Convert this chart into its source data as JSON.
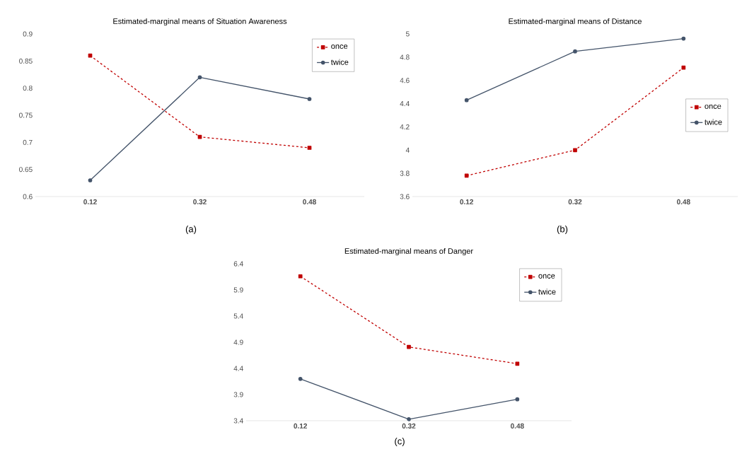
{
  "chart_data": [
    {
      "type": "line",
      "title": "Estimated-marginal means of Situation Awareness",
      "categories": [
        "0.12",
        "0.32",
        "0.48"
      ],
      "ylim": [
        0.6,
        0.9
      ],
      "yticks": [
        0.6,
        0.65,
        0.7,
        0.75,
        0.8,
        0.85,
        0.9
      ],
      "legend": "top right",
      "annotations": [
        "(a)"
      ],
      "series": [
        {
          "name": "once",
          "color": "#c00000",
          "values": [
            0.86,
            0.71,
            0.69
          ],
          "marker": "square",
          "line_style": "dashed"
        },
        {
          "name": "twice",
          "color": "#44546a",
          "values": [
            0.63,
            0.82,
            0.78
          ],
          "marker": "circle",
          "line_style": "solid"
        }
      ]
    },
    {
      "type": "line",
      "title": "Estimated-marginal means of Distance",
      "categories": [
        "0.12",
        "0.32",
        "0.48"
      ],
      "ylim": [
        3.6,
        5
      ],
      "yticks": [
        3.6,
        3.8,
        4,
        4.2,
        4.4,
        4.6,
        4.8,
        5
      ],
      "legend": "right",
      "annotations": [
        "(b)"
      ],
      "series": [
        {
          "name": "once",
          "color": "#c00000",
          "values": [
            3.78,
            4.0,
            4.71
          ],
          "marker": "square",
          "line_style": "dashed"
        },
        {
          "name": "twice",
          "color": "#44546a",
          "values": [
            4.43,
            4.85,
            4.96
          ],
          "marker": "circle",
          "line_style": "solid"
        }
      ]
    },
    {
      "type": "line",
      "title": "Estimated-marginal means of Danger",
      "categories": [
        "0.12",
        "0.32",
        "0.48"
      ],
      "ylim": [
        3.4,
        6.4
      ],
      "yticks": [
        3.4,
        3.9,
        4.4,
        4.9,
        5.4,
        5.9,
        6.4
      ],
      "legend": "top right",
      "annotations": [
        "(c)"
      ],
      "series": [
        {
          "name": "once",
          "color": "#c00000",
          "values": [
            6.16,
            4.81,
            4.49
          ],
          "marker": "square",
          "line_style": "dashed"
        },
        {
          "name": "twice",
          "color": "#44546a",
          "values": [
            4.2,
            3.43,
            3.81
          ],
          "marker": "circle",
          "line_style": "solid"
        }
      ]
    }
  ]
}
